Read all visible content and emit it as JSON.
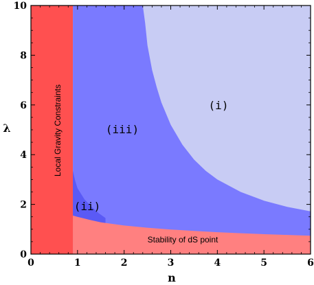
{
  "chart_data": {
    "type": "area",
    "xlabel": "n",
    "ylabel": "λ",
    "xlim": [
      0,
      6
    ],
    "ylim": [
      0,
      10
    ],
    "xticks": [
      "0",
      "1",
      "2",
      "3",
      "4",
      "5",
      "6"
    ],
    "yticks": [
      "0",
      "2",
      "4",
      "6",
      "8",
      "10"
    ],
    "colors": {
      "local_gravity": "#ff5050",
      "stability": "#ff8080",
      "region_iii": "#7a7aff",
      "region_i": "#c8ccf4",
      "region_ii_overlap": "#5a5af5"
    },
    "local_gravity_n_max": 0.9,
    "stability_boundary": {
      "n": [
        0.9,
        1.0,
        1.25,
        1.5,
        2.0,
        2.5,
        3.0,
        3.5,
        4.0,
        4.5,
        5.0,
        5.5,
        6.0
      ],
      "lambda": [
        1.55,
        1.5,
        1.38,
        1.28,
        1.15,
        1.06,
        0.99,
        0.93,
        0.88,
        0.84,
        0.8,
        0.77,
        0.74
      ]
    },
    "region_i_boundary": {
      "n": [
        2.4,
        2.45,
        2.5,
        2.6,
        2.7,
        2.8,
        3.0,
        3.25,
        3.5,
        3.75,
        4.0,
        4.5,
        5.0,
        5.5,
        6.0
      ],
      "lambda": [
        10.0,
        9.3,
        8.4,
        7.4,
        6.7,
        6.1,
        5.2,
        4.4,
        3.8,
        3.35,
        3.0,
        2.5,
        2.15,
        1.9,
        1.72
      ]
    },
    "region_ii_boundary": {
      "n": [
        0.9,
        0.95,
        1.0,
        1.15,
        1.3,
        1.45,
        1.6
      ],
      "lambda": [
        3.35,
        2.95,
        2.65,
        2.2,
        1.9,
        1.65,
        1.45
      ]
    },
    "labels": {
      "region_i": "(i)",
      "region_ii": "(ii)",
      "region_iii": "(iii)",
      "local_gravity": "Local Gravity Constraints",
      "stability": "Stability of dS point"
    }
  }
}
